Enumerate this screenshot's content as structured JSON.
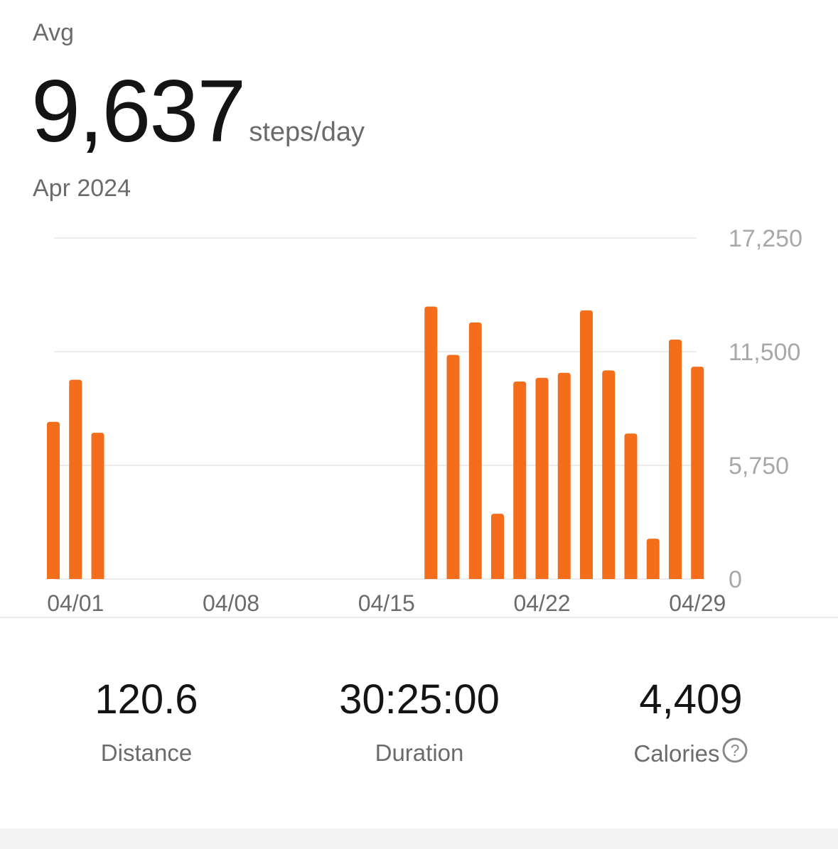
{
  "header": {
    "avg_label": "Avg",
    "avg_value": "9,637",
    "avg_unit": "steps/day",
    "period": "Apr 2024"
  },
  "chart_data": {
    "type": "bar",
    "bar_color": "#f46d1b",
    "grid_color": "#ececec",
    "tick_color": "#a8a8a8",
    "xtick_color": "#6b6b6b",
    "ylim": [
      0,
      17250
    ],
    "yticks": [
      0,
      5750,
      11500,
      17250
    ],
    "ytick_labels": [
      "0",
      "5,750",
      "11,500",
      "17,250"
    ],
    "grid": true,
    "xtick_labels": [
      "04/01",
      "04/08",
      "04/15",
      "04/22",
      "04/29"
    ],
    "categories": [
      "03/31",
      "04/01",
      "04/02",
      "04/03",
      "04/04",
      "04/05",
      "04/06",
      "04/07",
      "04/08",
      "04/09",
      "04/10",
      "04/11",
      "04/12",
      "04/13",
      "04/14",
      "04/15",
      "04/16",
      "04/17",
      "04/18",
      "04/19",
      "04/20",
      "04/21",
      "04/22",
      "04/23",
      "04/24",
      "04/25",
      "04/26",
      "04/27",
      "04/28",
      "04/29"
    ],
    "values": [
      7950,
      10080,
      7400,
      0,
      0,
      0,
      0,
      0,
      0,
      0,
      0,
      0,
      0,
      0,
      0,
      0,
      0,
      13780,
      11340,
      12980,
      3300,
      9990,
      10180,
      10430,
      13590,
      10550,
      7360,
      2040,
      12110,
      10740
    ]
  },
  "stats": [
    {
      "value": "120.6",
      "label": "Distance"
    },
    {
      "value": "30:25:00",
      "label": "Duration"
    },
    {
      "value": "4,409",
      "label": "Calories"
    }
  ],
  "icons": {
    "calories_help": "question-circle-icon"
  }
}
